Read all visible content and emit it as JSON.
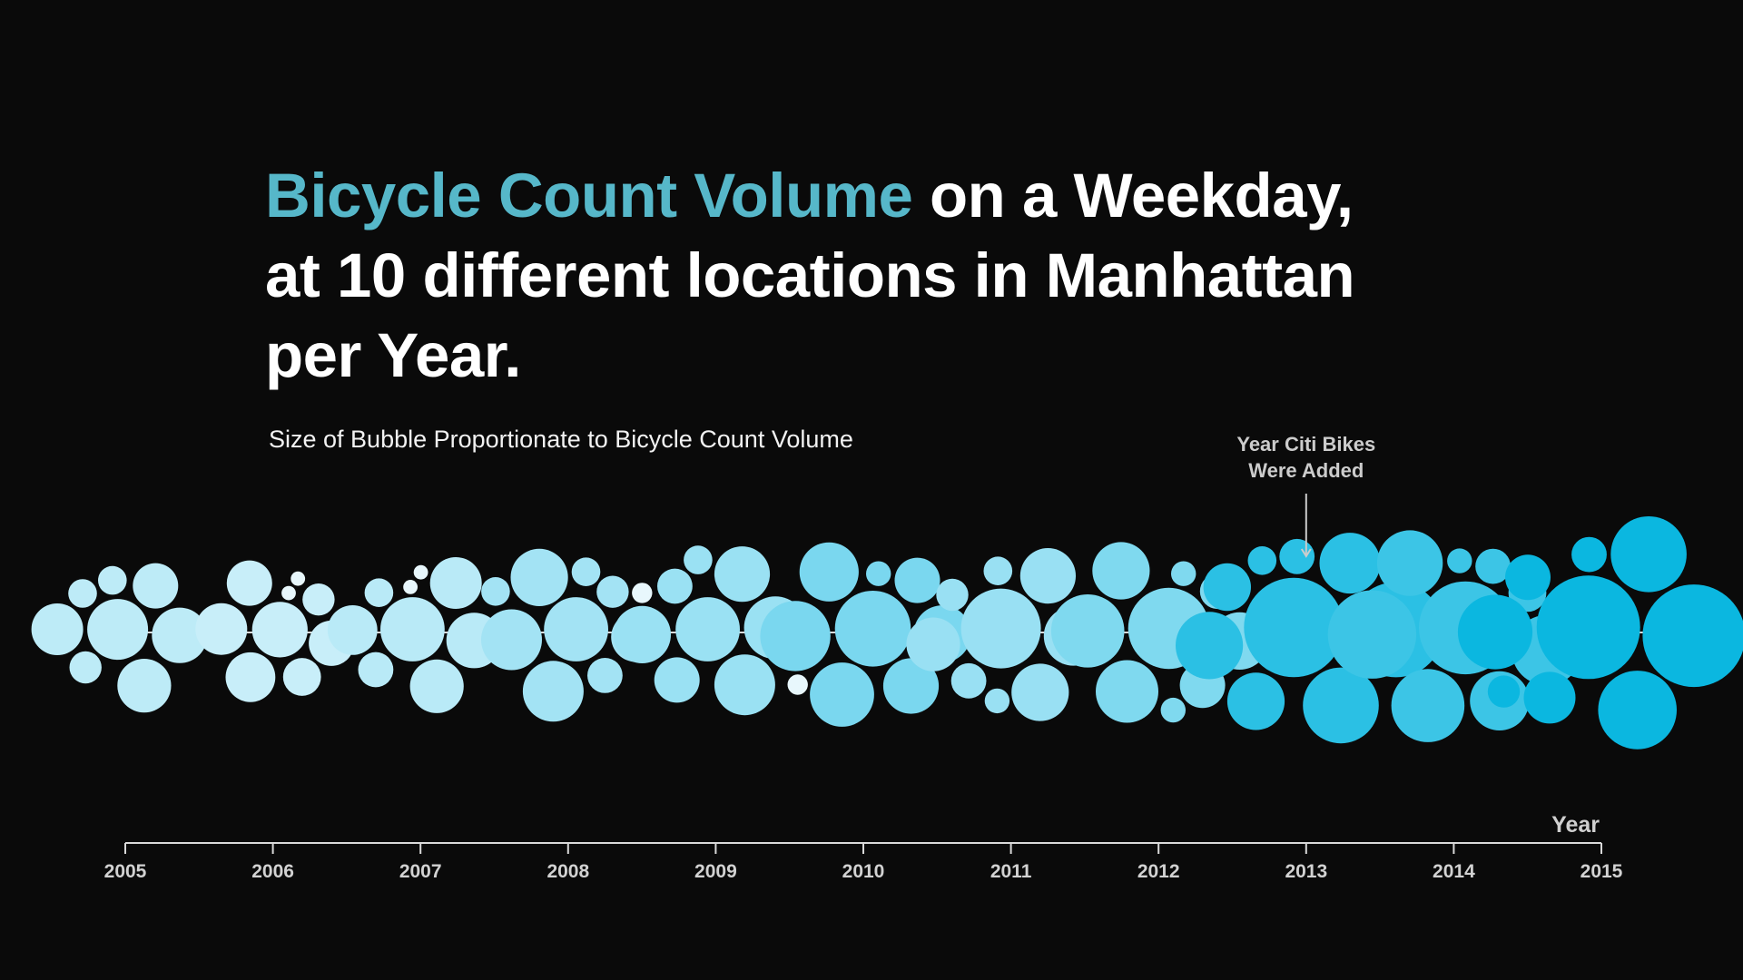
{
  "title": {
    "accent": "Bicycle Count Volume",
    "line1_rest": " on a Weekday,",
    "line2": "at 10 different locations in Manhattan",
    "line3": "per Year."
  },
  "subtitle": "Size of Bubble Proportionate to Bicycle Count Volume",
  "colors": {
    "background": "#0a0a0a",
    "title_accent": "#56b7c9",
    "bubble_low": "#c8eef9",
    "bubble_high": "#0bb7e0",
    "axis": "#d9d9d9"
  },
  "chart_data": {
    "type": "scatter",
    "encoding": "bubble cluster per year; bubble size = bicycle count volume",
    "xlabel": "Year",
    "ylabel": "",
    "years": [
      2005,
      2006,
      2007,
      2008,
      2009,
      2010,
      2011,
      2012,
      2013,
      2014,
      2015
    ],
    "xlim": [
      2005,
      2015
    ],
    "grid": false,
    "legend": "none",
    "annotation": {
      "year": 2013,
      "line1": "Year Citi Bikes",
      "line2": "Were Added"
    },
    "volume_scale": "relative",
    "clusters": [
      {
        "year": 2005,
        "volumes": [
          1.4,
          1.8,
          1.5,
          1.3,
          1.0,
          0.5,
          0.4,
          0.4
        ]
      },
      {
        "year": 2006,
        "volumes": [
          1.5,
          1.2,
          1.3,
          1.0,
          1.0,
          0.7,
          0.5,
          0.1,
          0.1
        ]
      },
      {
        "year": 2007,
        "volumes": [
          2.0,
          1.5,
          1.4,
          1.3,
          1.2,
          0.6,
          0.4,
          0.1,
          0.1
        ]
      },
      {
        "year": 2008,
        "volumes": [
          2.0,
          1.8,
          1.8,
          1.6,
          1.2,
          0.6,
          0.5,
          0.4,
          0.4
        ]
      },
      {
        "year": 2009,
        "volumes": [
          2.0,
          1.9,
          1.8,
          1.6,
          1.5,
          1.0,
          0.6,
          0.4,
          0.2
        ]
      },
      {
        "year": 2010,
        "volumes": [
          2.8,
          2.4,
          2.0,
          1.7,
          1.6,
          1.5,
          1.0,
          0.3,
          0.2
        ]
      },
      {
        "year": 2011,
        "volumes": [
          3.1,
          1.7,
          1.6,
          1.5,
          1.4,
          0.6,
          0.5,
          0.4,
          0.3
        ]
      },
      {
        "year": 2012,
        "volumes": [
          3.2,
          2.6,
          1.9,
          1.6,
          1.6,
          1.0,
          0.6,
          0.3,
          0.3
        ]
      },
      {
        "year": 2013,
        "volumes": [
          4.8,
          4.4,
          2.8,
          2.2,
          1.8,
          1.6,
          1.1,
          0.6,
          0.4
        ]
      },
      {
        "year": 2014,
        "volumes": [
          4.2,
          3.8,
          2.6,
          2.4,
          2.1,
          1.7,
          0.7,
          0.6,
          0.3
        ]
      },
      {
        "year": 2015,
        "volumes": [
          5.2,
          5.1,
          3.0,
          2.8,
          2.7,
          1.3,
          1.0,
          0.6,
          0.5
        ]
      }
    ]
  }
}
